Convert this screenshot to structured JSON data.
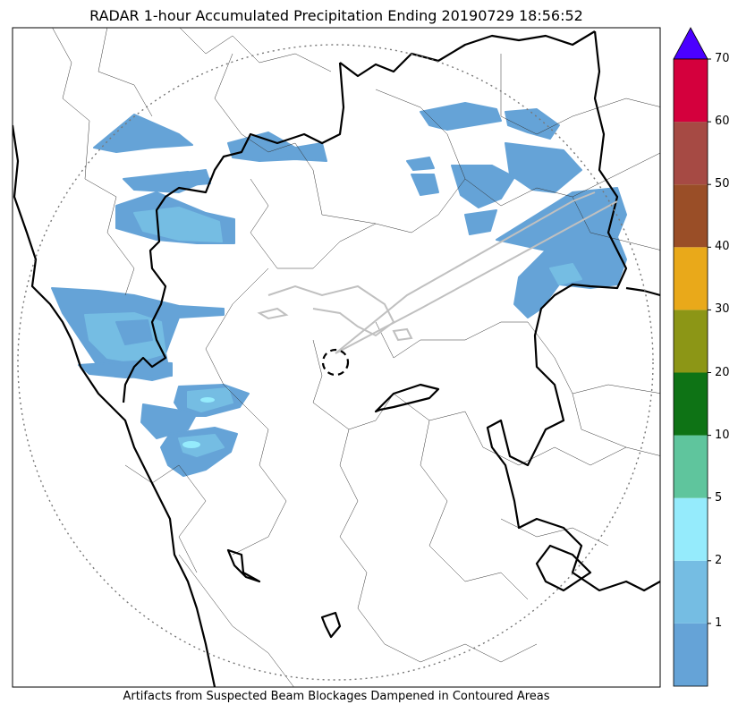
{
  "title": "RADAR 1-hour Accumulated Precipitation Ending 20190729 18:56:52",
  "footer": "Artifacts from Suspected Beam Blockages Dampened in Contoured Areas",
  "colorbar": {
    "labels": [
      "1",
      "2",
      "5",
      "10",
      "20",
      "30",
      "40",
      "50",
      "60",
      "70"
    ],
    "colors": [
      "#65a3d7",
      "#75bde3",
      "#95ebfc",
      "#5fc59d",
      "#0e7315",
      "#8c9616",
      "#e9a91a",
      "#9a4e27",
      "#a64a44",
      "#d4003d"
    ],
    "extend_color": "#4b00ff"
  },
  "map": {
    "rain_colors": {
      "light": "#65a3d7",
      "moderate": "#75bde3",
      "heavy": "#95ebfc"
    },
    "radar_range_ring": "dotted",
    "radar_site": "dashed-circle"
  }
}
